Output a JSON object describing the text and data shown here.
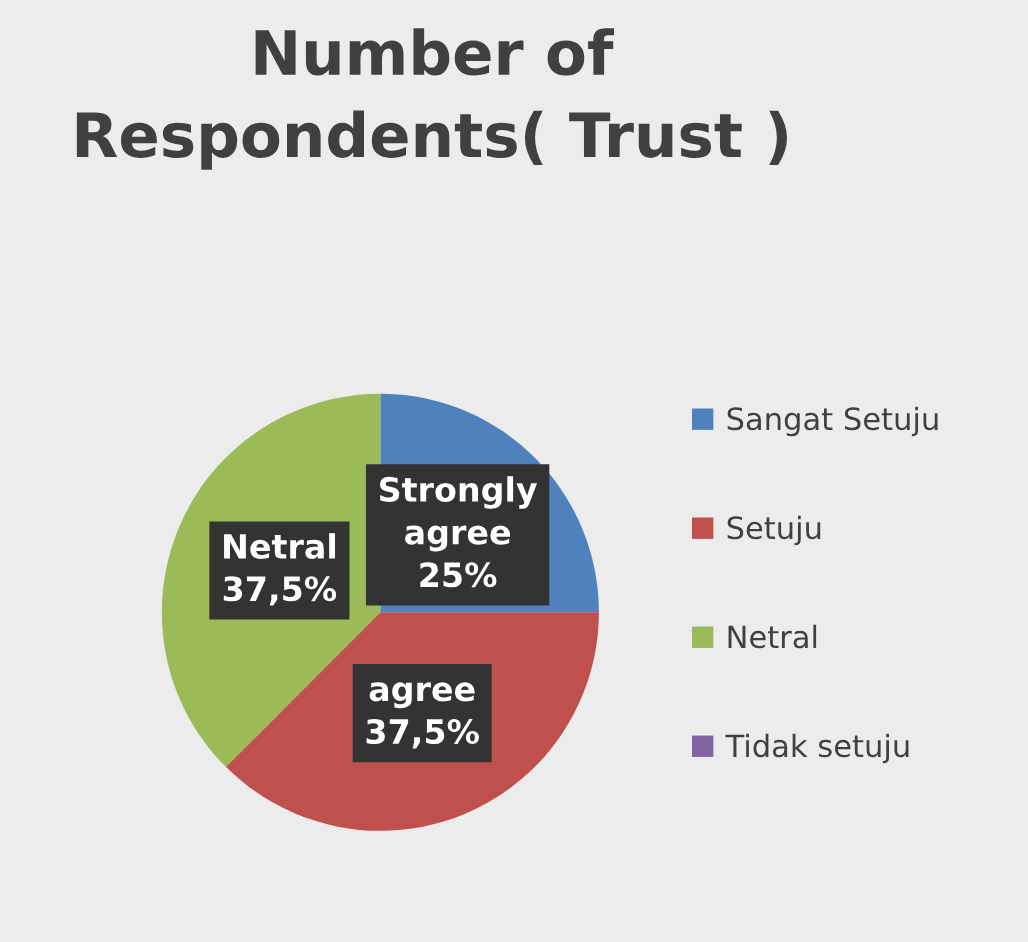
{
  "chart_data": {
    "type": "pie",
    "title": "Number of\nRespondents( Trust )",
    "categories": [
      "Sangat Setuju",
      "Setuju",
      "Netral",
      "Tidak setuju"
    ],
    "values": [
      25,
      37.5,
      37.5,
      0
    ],
    "colors": [
      "#4f81bd",
      "#c0504d",
      "#9bbb59",
      "#8064a2"
    ],
    "value_labels": [
      "Strongly\nagree\n25%",
      "agree\n37,5%",
      "Netral\n37,5%",
      null
    ],
    "legend": "right"
  }
}
